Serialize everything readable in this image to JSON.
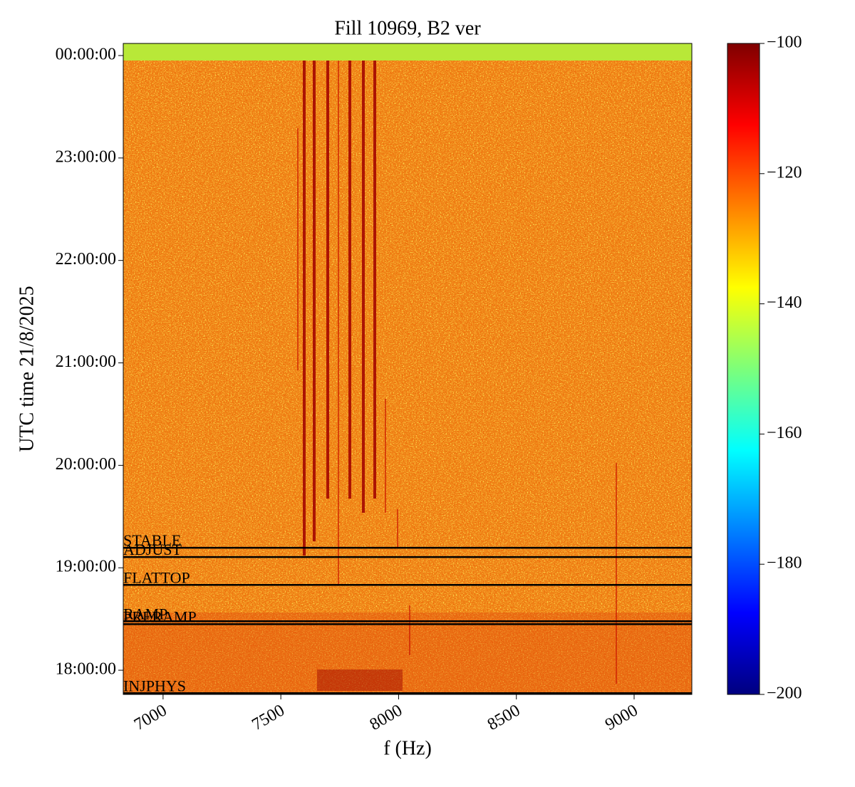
{
  "chart_data": {
    "type": "spectrogram",
    "title": "Fill 10969, B2 ver",
    "x_label": "f (Hz)",
    "y_label": "UTC time 21/8/2025",
    "xlim": [
      6831,
      9245
    ],
    "xticks": [
      7000,
      7500,
      8000,
      8500,
      9000
    ],
    "ylim": [
      17.764,
      24.118
    ],
    "yticks": [
      {
        "value": 18,
        "label": "18:00:00"
      },
      {
        "value": 19,
        "label": "19:00:00"
      },
      {
        "value": 20,
        "label": "20:00:00"
      },
      {
        "value": 21,
        "label": "21:00:00"
      },
      {
        "value": 22,
        "label": "22:00:00"
      },
      {
        "value": 23,
        "label": "23:00:00"
      },
      {
        "value": 24,
        "label": "00:00:00"
      }
    ],
    "colormap": "jet",
    "clim": [
      -200,
      -100
    ],
    "cticks": [
      {
        "value": -100,
        "label": "−100"
      },
      {
        "value": -120,
        "label": "−120"
      },
      {
        "value": -140,
        "label": "−140"
      },
      {
        "value": -160,
        "label": "−160"
      },
      {
        "value": -180,
        "label": "−180"
      },
      {
        "value": -200,
        "label": "−200"
      }
    ],
    "phases": [
      {
        "label": "STABLE",
        "time": 19.195
      },
      {
        "label": "ADJUST",
        "time": 19.105
      },
      {
        "label": "FLATTOP",
        "time": 18.833
      },
      {
        "label": "RAMP",
        "time": 18.478
      },
      {
        "label": "PRERAMP",
        "time": 18.45
      },
      {
        "label": "INJPHYS",
        "time": 17.776
      }
    ],
    "phase_color": "#000000"
  }
}
